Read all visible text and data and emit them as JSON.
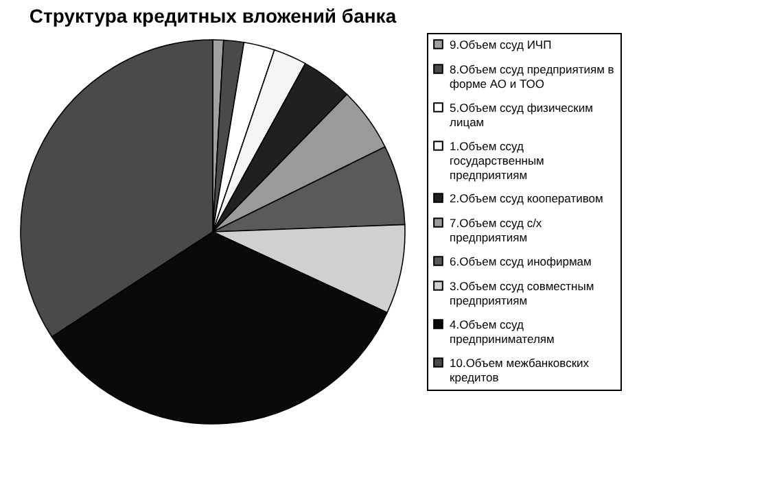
{
  "chart_data": {
    "type": "pie",
    "title": "Структура кредитных вложений банка",
    "categories": [
      "9.Объем ссуд ИЧП",
      "8.Объем ссуд предприятиям в форме АО и ТОО",
      "5.Объем ссуд физическим лицам",
      "1.Объем ссуд государственным предприятиям",
      "2.Объем ссуд кооперативом",
      "7.Объем ссуд с/х предприятиям",
      "6.Объем ссуд инофирмам",
      "3.Объем ссуд совместным предприятиям",
      "4.Объем ссуд предпринимателям",
      "10.Объем межбанковских кредитов"
    ],
    "values": [
      0.9,
      1.7,
      2.6,
      2.8,
      4.3,
      5.4,
      6.7,
      7.5,
      33.9,
      34.2
    ],
    "colors": [
      "#a0a0a0",
      "#4a4a4a",
      "#ffffff",
      "#f4f4f4",
      "#202020",
      "#9a9a9a",
      "#5a5a5a",
      "#d0d0d0",
      "#0a0a0a",
      "#4a4a4a"
    ],
    "legend": "right"
  }
}
